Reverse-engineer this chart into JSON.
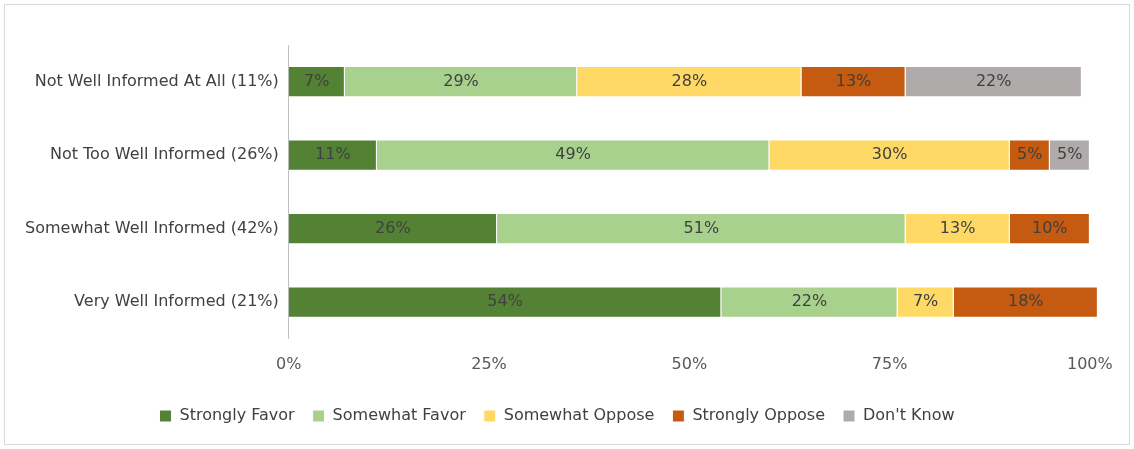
{
  "chart_data": {
    "type": "bar",
    "orientation": "horizontal",
    "stacked": true,
    "categories": [
      "Not Well Informed At All (11%)",
      "Not Too Well Informed (26%)",
      "Somewhat Well Informed (42%)",
      "Very Well Informed (21%)"
    ],
    "series": [
      {
        "name": "Strongly Favor",
        "color": "#548235",
        "values": [
          7,
          11,
          26,
          54
        ],
        "value_labels": [
          "7%",
          "11%",
          "26%",
          "54%"
        ]
      },
      {
        "name": "Somewhat Favor",
        "color": "#a9d18e",
        "values": [
          29,
          49,
          51,
          22
        ],
        "value_labels": [
          "29%",
          "49%",
          "51%",
          "22%"
        ]
      },
      {
        "name": "Somewhat Oppose",
        "color": "#ffd966",
        "values": [
          28,
          30,
          13,
          7
        ],
        "value_labels": [
          "28%",
          "30%",
          "13%",
          "7%"
        ]
      },
      {
        "name": "Strongly Oppose",
        "color": "#c55a11",
        "values": [
          13,
          5,
          10,
          18
        ],
        "value_labels": [
          "13%",
          "5%",
          "10%",
          "18%"
        ]
      },
      {
        "name": "Don't Know",
        "color": "#afabab",
        "values": [
          22,
          5,
          null,
          null
        ],
        "value_labels": [
          "22%",
          "5%",
          null,
          null
        ]
      }
    ],
    "xlim": [
      0,
      101
    ],
    "xticks": [
      {
        "value": 0,
        "label": "0%"
      },
      {
        "value": 25,
        "label": "25%"
      },
      {
        "value": 50,
        "label": "50%"
      },
      {
        "value": 75,
        "label": "75%"
      },
      {
        "value": 100,
        "label": "100%"
      }
    ],
    "grid": false,
    "legend": "bottom"
  }
}
